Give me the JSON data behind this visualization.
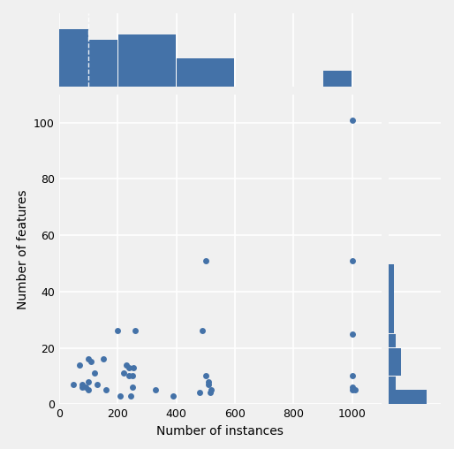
{
  "scatter_x": [
    50,
    70,
    80,
    80,
    90,
    100,
    100,
    100,
    110,
    120,
    130,
    150,
    160,
    200,
    210,
    220,
    230,
    240,
    240,
    245,
    250,
    250,
    255,
    260,
    330,
    390,
    480,
    490,
    500,
    500,
    510,
    510,
    515,
    520,
    1000,
    1000,
    1000,
    1000,
    1000,
    1000,
    1010
  ],
  "scatter_y": [
    7,
    14,
    6,
    7,
    6,
    5,
    8,
    16,
    15,
    11,
    7,
    16,
    5,
    26,
    3,
    11,
    14,
    10,
    13,
    3,
    6,
    10,
    13,
    26,
    5,
    3,
    4,
    26,
    10,
    51,
    7,
    8,
    4,
    5,
    5,
    6,
    10,
    25,
    51,
    101,
    5
  ],
  "dot_color": "#4472a8",
  "dot_size": 25,
  "xlabel": "Number of instances",
  "ylabel": "Number of features",
  "scatter_xlim": [
    0,
    1100
  ],
  "scatter_ylim": [
    0,
    110
  ],
  "scatter_xticks": [
    0,
    200,
    400,
    600,
    800,
    1000
  ],
  "scatter_yticks": [
    0,
    20,
    40,
    60,
    80,
    100
  ],
  "top_hist_left": [
    0,
    100,
    200,
    400,
    600,
    800,
    900,
    1000
  ],
  "top_hist_right": [
    100,
    200,
    400,
    600,
    800,
    900,
    1000,
    1100
  ],
  "top_hist_heights": [
    22,
    18,
    20,
    11,
    0,
    0,
    6,
    0
  ],
  "right_hist_bottom": [
    0,
    5,
    10,
    20,
    25,
    50,
    55
  ],
  "right_hist_top": [
    5,
    10,
    20,
    25,
    50,
    55,
    110
  ],
  "right_hist_widths": [
    22,
    4,
    7,
    4,
    3,
    0,
    0
  ],
  "hist_color": "#4472a8",
  "bg_color": "#f0f0f0",
  "grid_color": "#ffffff",
  "axis_label_fontsize": 10,
  "tick_fontsize": 9
}
